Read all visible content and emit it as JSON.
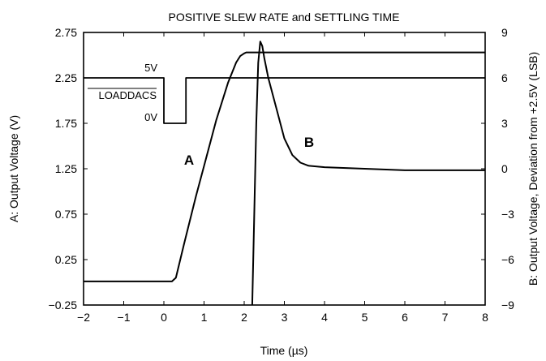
{
  "chart_data": {
    "type": "line",
    "title": "POSITIVE SLEW RATE and SETTLING TIME",
    "xlabel": "Time (µs)",
    "ylabel_left": "A: Output Voltage (V)",
    "ylabel_right": "B: Output Voltage, Deviation from +2.5V (LSB)",
    "xlim": [
      -2,
      8
    ],
    "ylim_left": [
      -0.25,
      2.75
    ],
    "ylim_right": [
      -9,
      9
    ],
    "x_ticks": [
      "−2",
      "−1",
      "0",
      "1",
      "2",
      "3",
      "4",
      "5",
      "6",
      "7",
      "8"
    ],
    "y_ticks_left": [
      "2.75",
      "2.25",
      "1.75",
      "1.25",
      "0.75",
      "0.25",
      "−0.25"
    ],
    "y_ticks_right": [
      "9",
      "6",
      "3",
      "0",
      "−3",
      "−6",
      "−9"
    ],
    "grid": false,
    "annotations": {
      "loaddacs_label": "LOADDACS",
      "high_level": "5V",
      "low_level": "0V",
      "curve_a_label": "A",
      "curve_b_label": "B"
    },
    "series": [
      {
        "name": "A",
        "axis": "left",
        "x": [
          -2.0,
          -1.0,
          0.0,
          0.2,
          0.3,
          0.5,
          0.8,
          1.0,
          1.3,
          1.6,
          1.8,
          1.9,
          2.0,
          2.05,
          2.1,
          3.0,
          5.0,
          8.0
        ],
        "y": [
          0.01,
          0.01,
          0.01,
          0.01,
          0.05,
          0.42,
          0.95,
          1.28,
          1.78,
          2.2,
          2.42,
          2.49,
          2.52,
          2.53,
          2.53,
          2.53,
          2.53,
          2.53
        ]
      },
      {
        "name": "B",
        "axis": "right",
        "x": [
          2.2,
          2.25,
          2.3,
          2.35,
          2.4,
          2.45,
          2.5,
          2.6,
          2.8,
          3.0,
          3.2,
          3.4,
          3.6,
          4.0,
          5.0,
          6.0,
          7.0,
          8.0
        ],
        "y": [
          -9.0,
          -3.0,
          3.0,
          7.0,
          8.4,
          8.1,
          7.3,
          6.0,
          4.0,
          2.0,
          0.9,
          0.4,
          0.2,
          0.1,
          0.0,
          -0.1,
          -0.1,
          -0.1
        ]
      },
      {
        "name": "LOADDACS",
        "axis": "left",
        "x": [
          -2.0,
          0.0,
          0.0,
          0.55,
          0.55,
          8.0
        ],
        "y": [
          2.25,
          2.25,
          1.75,
          1.75,
          2.25,
          2.25
        ]
      }
    ]
  }
}
